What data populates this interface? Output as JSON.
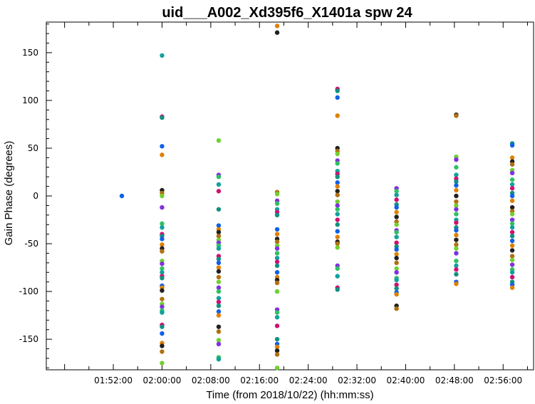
{
  "chart_data": {
    "type": "scatter",
    "title": "uid___A002_Xd395f6_X1401a spw 24",
    "xlabel": "Time (from 2018/10/22) (hh:mm:ss)",
    "ylabel": "Gain Phase (degrees)",
    "x_unit": "minutes after 00:00",
    "xlim": [
      101,
      181
    ],
    "ylim": [
      -182,
      182
    ],
    "x_ticks": [
      {
        "value": 112,
        "label": "01:52:00"
      },
      {
        "value": 120,
        "label": "02:00:00"
      },
      {
        "value": 128,
        "label": "02:08:00"
      },
      {
        "value": 136,
        "label": "02:16:00"
      },
      {
        "value": 144,
        "label": "02:24:00"
      },
      {
        "value": 152,
        "label": "02:32:00"
      },
      {
        "value": 160,
        "label": "02:40:00"
      },
      {
        "value": 168,
        "label": "02:48:00"
      },
      {
        "value": 176,
        "label": "02:56:00"
      }
    ],
    "y_ticks": [
      {
        "value": 150,
        "label": "150"
      },
      {
        "value": 100,
        "label": "100"
      },
      {
        "value": 50,
        "label": "50"
      },
      {
        "value": 0,
        "label": "0"
      },
      {
        "value": -50,
        "label": "-50"
      },
      {
        "value": -100,
        "label": "-100"
      },
      {
        "value": -150,
        "label": "-150"
      }
    ],
    "grid": false,
    "legend": "none",
    "palette": [
      "#1060e8",
      "#10a0a0",
      "#70d030",
      "#e08000",
      "#d01070",
      "#8030e0",
      "#202020",
      "#109080",
      "#30c060",
      "#b07010"
    ],
    "groups": [
      {
        "x": 113.4,
        "y": [
          0
        ]
      },
      {
        "x": 120.0,
        "y": [
          147,
          83,
          82,
          52,
          43,
          6,
          3,
          0,
          -12,
          -29,
          -33,
          -40,
          -42,
          -45,
          -51,
          -55,
          -58,
          -68,
          -71,
          -76,
          -80,
          -84,
          -86,
          -94,
          -96,
          -99,
          -108,
          -113,
          -116,
          -120,
          -122,
          -135,
          -137,
          -144,
          -154,
          -157,
          -163,
          -175
        ]
      },
      {
        "x": 129.3,
        "y": [
          58,
          22,
          20,
          12,
          5,
          -14,
          -31,
          -35,
          -38,
          -42,
          -46,
          -49,
          -52,
          -55,
          -63,
          -66,
          -70,
          -75,
          -79,
          -85,
          -90,
          -96,
          -100,
          -107,
          -111,
          -115,
          -121,
          -125,
          -137,
          -142,
          -151,
          -155,
          -169,
          -171
        ]
      },
      {
        "x": 138.9,
        "y": [
          178,
          171,
          4,
          2,
          -5,
          -8,
          -14,
          -17,
          -20,
          -35,
          -40,
          -45,
          -48,
          -52,
          -55,
          -60,
          -65,
          -69,
          -73,
          -80,
          -85,
          -88,
          -91,
          -100,
          -119,
          -122,
          -127,
          -136,
          -150,
          -155,
          -158,
          -162,
          -166,
          -180
        ]
      },
      {
        "x": 148.8,
        "y": [
          112,
          110,
          103,
          84,
          50,
          47,
          44,
          37,
          34,
          26,
          23,
          20,
          14,
          10,
          5,
          1,
          -6,
          -10,
          -14,
          -19,
          -25,
          -30,
          -37,
          -43,
          -48,
          -50,
          -54,
          -73,
          -76,
          -84,
          -96,
          -98
        ]
      },
      {
        "x": 158.5,
        "y": [
          8,
          5,
          1,
          -4,
          -9,
          -12,
          -17,
          -22,
          -27,
          -30,
          -36,
          -38,
          -43,
          -49,
          -53,
          -56,
          -61,
          -65,
          -70,
          -76,
          -80,
          -86,
          -88,
          -93,
          -97,
          -101,
          -103,
          -115,
          -118
        ]
      },
      {
        "x": 168.3,
        "y": [
          85,
          84,
          41,
          38,
          30,
          22,
          18,
          15,
          11,
          6,
          0,
          -6,
          -10,
          -14,
          -19,
          -25,
          -28,
          -33,
          -36,
          -41,
          -46,
          -51,
          -55,
          -60,
          -68,
          -73,
          -77,
          -82,
          -90,
          -92
        ]
      },
      {
        "x": 177.5,
        "y": [
          55,
          53,
          40,
          36,
          33,
          27,
          24,
          17,
          12,
          8,
          3,
          0,
          -5,
          -12,
          -16,
          -19,
          -25,
          -29,
          -33,
          -38,
          -42,
          -47,
          -52,
          -57,
          -63,
          -67,
          -72,
          -77,
          -80,
          -85,
          -90,
          -93,
          -96
        ]
      }
    ]
  }
}
